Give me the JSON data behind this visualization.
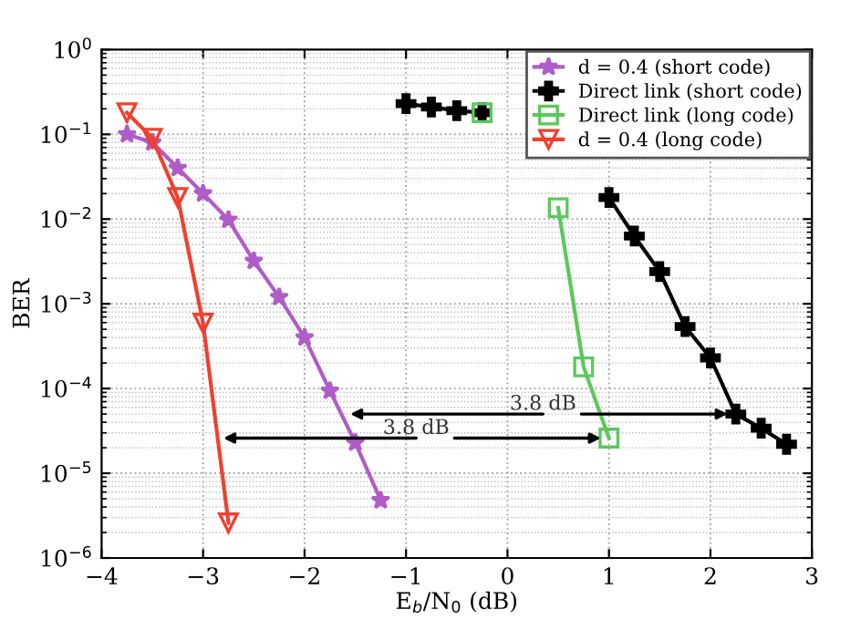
{
  "chart_data": {
    "type": "line",
    "xlabel": "E$_{b}$/N$_{0}$ (dB)",
    "ylabel": "BER",
    "log": "y",
    "grid": true,
    "legend": "top right",
    "xlim": [
      -4,
      3
    ],
    "xticks": [
      {
        "value": -4,
        "label": "−4"
      },
      {
        "value": -3,
        "label": "−3"
      },
      {
        "value": -2,
        "label": "−2"
      },
      {
        "value": -1,
        "label": "−1"
      },
      0,
      1,
      2,
      3
    ],
    "ylim": [
      1e-06,
      1
    ],
    "yticks": [
      {
        "value": 1e-06,
        "label": "10$^{−6}$"
      },
      {
        "value": 1e-05,
        "label": "10$^{−5}$"
      },
      {
        "value": 0.0001,
        "label": "10$^{−4}$"
      },
      {
        "value": 0.001,
        "label": "10$^{−3}$"
      },
      {
        "value": 0.01,
        "label": "10$^{−2}$"
      },
      {
        "value": 0.1,
        "label": "10$^{−1}$"
      },
      {
        "value": 1,
        "label": "10$^{0}$"
      }
    ],
    "series": [
      {
        "name": "d = 0.4 (short code)",
        "color": "#b05cc8",
        "marker": "star",
        "x": [
          -3.75,
          -3.5,
          -3.25,
          -3,
          -2.75,
          -2.5,
          -2.25,
          -2,
          -1.75,
          -1.5,
          -1.25
        ],
        "values": [
          0.1,
          0.08,
          0.04,
          0.02,
          0.0098,
          0.0032,
          0.0012,
          0.0004,
          9.4e-05,
          2.3e-05,
          4.8e-06
        ]
      },
      {
        "name": "Direct link (short code)",
        "color": "#000000",
        "marker": "cross",
        "x": [
          -1,
          -0.75,
          -0.5,
          -0.25,
          0,
          0.25,
          0.5,
          0.75,
          1,
          1.25,
          1.5,
          1.75,
          2,
          2.25,
          2.5,
          2.75
        ],
        "values": [
          0.23,
          0.21,
          0.19,
          0.18,
          null,
          null,
          null,
          null,
          0.018,
          0.0063,
          0.0024,
          0.00054,
          0.00023,
          5e-05,
          3.4e-05,
          2.2e-05
        ]
      },
      {
        "name": "Direct link (long code)",
        "color": "#5cc85c",
        "marker": "square",
        "x": [
          -0.25,
          0,
          0.25,
          0.5,
          0.75,
          1
        ],
        "values": [
          0.18,
          null,
          null,
          0.0136,
          0.00018,
          2.6e-05
        ]
      },
      {
        "name": "d = 0.4 (long code)",
        "color": "#f04030",
        "marker": "triangle",
        "x": [
          -3.75,
          -3.5,
          -3.25,
          -3,
          -2.75
        ],
        "values": [
          0.18,
          0.09,
          0.018,
          0.00059,
          2.6e-06
        ]
      }
    ],
    "annotations": [
      {
        "text": "3.8 dB",
        "x": 2.25,
        "y": 5e-05
      },
      {
        "text": "3.8 dB",
        "x": 1,
        "y": 2.6e-05
      }
    ]
  }
}
